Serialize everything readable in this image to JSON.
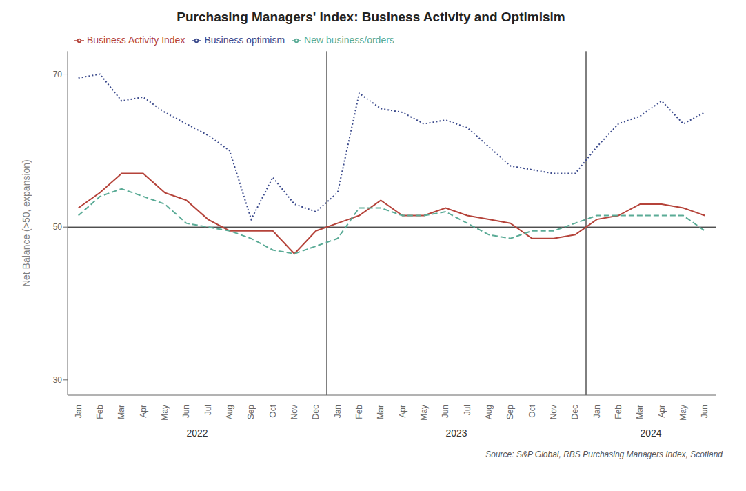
{
  "chart_data": {
    "type": "line",
    "title": "Purchasing Managers' Index: Business Activity and Optimisim",
    "y_label": "Net Balance (>50, expansion)",
    "source": "Source: S&P Global, RBS Purchasing Managers Index, Scotland",
    "categories": [
      "Jan",
      "Feb",
      "Mar",
      "Apr",
      "May",
      "Jun",
      "Jul",
      "Aug",
      "Sep",
      "Oct",
      "Nov",
      "Dec",
      "Jan",
      "Feb",
      "Mar",
      "Apr",
      "May",
      "Jun",
      "Jul",
      "Aug",
      "Sep",
      "Oct",
      "Nov",
      "Dec",
      "Jan",
      "Feb",
      "Mar",
      "Apr",
      "May",
      "Jun"
    ],
    "series": [
      {
        "name": "Business Activity Index",
        "color": "#b5433a",
        "line_style": "solid",
        "values": [
          52.5,
          54.5,
          57.0,
          57.0,
          54.5,
          53.5,
          51.0,
          49.5,
          49.5,
          49.5,
          46.5,
          49.5,
          50.5,
          51.5,
          53.5,
          51.5,
          51.5,
          52.5,
          51.5,
          51.0,
          50.5,
          48.5,
          48.5,
          49.0,
          51.0,
          51.5,
          53.0,
          53.0,
          52.5,
          51.5
        ]
      },
      {
        "name": "New business/orders",
        "color": "#5aab96",
        "line_style": "dashed",
        "values": [
          51.5,
          54.0,
          55.0,
          54.0,
          53.0,
          50.5,
          50.0,
          49.5,
          48.5,
          47.0,
          46.5,
          47.5,
          48.5,
          52.5,
          52.5,
          51.5,
          51.5,
          52.0,
          50.5,
          49.0,
          48.5,
          49.5,
          49.5,
          50.5,
          51.5,
          51.5,
          51.5,
          51.5,
          51.5,
          49.5
        ]
      },
      {
        "name": "Business optimism",
        "color": "#3b4a8c",
        "line_style": "dotted",
        "values": [
          69.5,
          70.0,
          66.5,
          67.0,
          65.0,
          63.5,
          62.0,
          60.0,
          51.0,
          56.5,
          53.0,
          52.0,
          54.5,
          67.5,
          65.5,
          65.0,
          63.5,
          64.0,
          63.0,
          60.5,
          58.0,
          57.5,
          57.0,
          57.0,
          60.5,
          63.5,
          64.5,
          66.5,
          63.5,
          65.0
        ]
      }
    ],
    "ylim": [
      28,
      73
    ],
    "yticks": [
      30,
      50,
      70
    ],
    "hline": 50,
    "year_labels": [
      {
        "label": "2022",
        "center": 5.5
      },
      {
        "label": "2023",
        "center": 17.5
      },
      {
        "label": "2024",
        "center": 26.5
      }
    ],
    "year_separators": [
      11.5,
      23.5
    ],
    "grid": false,
    "legend": "top-left"
  }
}
